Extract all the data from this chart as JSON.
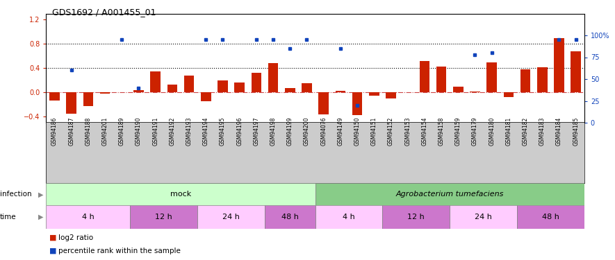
{
  "title": "GDS1692 / A001455_01",
  "samples": [
    "GSM94186",
    "GSM94187",
    "GSM94188",
    "GSM94201",
    "GSM94189",
    "GSM94190",
    "GSM94191",
    "GSM94192",
    "GSM94193",
    "GSM94194",
    "GSM94195",
    "GSM94196",
    "GSM94197",
    "GSM94198",
    "GSM94199",
    "GSM94200",
    "GSM94076",
    "GSM94149",
    "GSM94150",
    "GSM94151",
    "GSM94152",
    "GSM94153",
    "GSM94154",
    "GSM94158",
    "GSM94159",
    "GSM94179",
    "GSM94180",
    "GSM94181",
    "GSM94182",
    "GSM94183",
    "GSM94184",
    "GSM94185"
  ],
  "log2_ratio": [
    -0.13,
    -0.35,
    -0.22,
    -0.02,
    0.0,
    0.04,
    0.35,
    0.13,
    0.28,
    -0.15,
    0.2,
    0.16,
    0.32,
    0.48,
    0.07,
    0.15,
    -0.36,
    0.03,
    -0.37,
    -0.05,
    -0.1,
    0.0,
    0.52,
    0.43,
    0.09,
    0.02,
    0.5,
    -0.08,
    0.38,
    0.42,
    0.9,
    0.68
  ],
  "percentile_vals": [
    null,
    60,
    null,
    null,
    95,
    40,
    null,
    null,
    null,
    95,
    95,
    null,
    95,
    95,
    85,
    95,
    null,
    85,
    20,
    null,
    null,
    null,
    null,
    null,
    null,
    78,
    80,
    null,
    null,
    null,
    95,
    95
  ],
  "bar_color": "#cc2200",
  "dot_color": "#1144bb",
  "zero_line_color": "#cc4444",
  "ylim_left": [
    -0.5,
    1.3
  ],
  "ylim_right": [
    0,
    125
  ],
  "yticks_left": [
    -0.4,
    0.0,
    0.4,
    0.8,
    1.2
  ],
  "yticks_right": [
    0,
    25,
    50,
    75,
    100
  ],
  "hlines": [
    0.4,
    0.8
  ],
  "plot_bg": "#ffffff",
  "label_bg": "#cccccc",
  "mock_color": "#ccffcc",
  "agro_color": "#88cc88",
  "time_colors": [
    "#ffccff",
    "#cc77cc",
    "#ffccff",
    "#cc77cc",
    "#ffccff",
    "#cc77cc",
    "#ffccff",
    "#cc77cc"
  ],
  "time_groups": [
    {
      "label": "4 h",
      "start": 0,
      "end": 5
    },
    {
      "label": "12 h",
      "start": 5,
      "end": 9
    },
    {
      "label": "24 h",
      "start": 9,
      "end": 13
    },
    {
      "label": "48 h",
      "start": 13,
      "end": 16
    },
    {
      "label": "4 h",
      "start": 16,
      "end": 20
    },
    {
      "label": "12 h",
      "start": 20,
      "end": 24
    },
    {
      "label": "24 h",
      "start": 24,
      "end": 28
    },
    {
      "label": "48 h",
      "start": 28,
      "end": 32
    }
  ]
}
